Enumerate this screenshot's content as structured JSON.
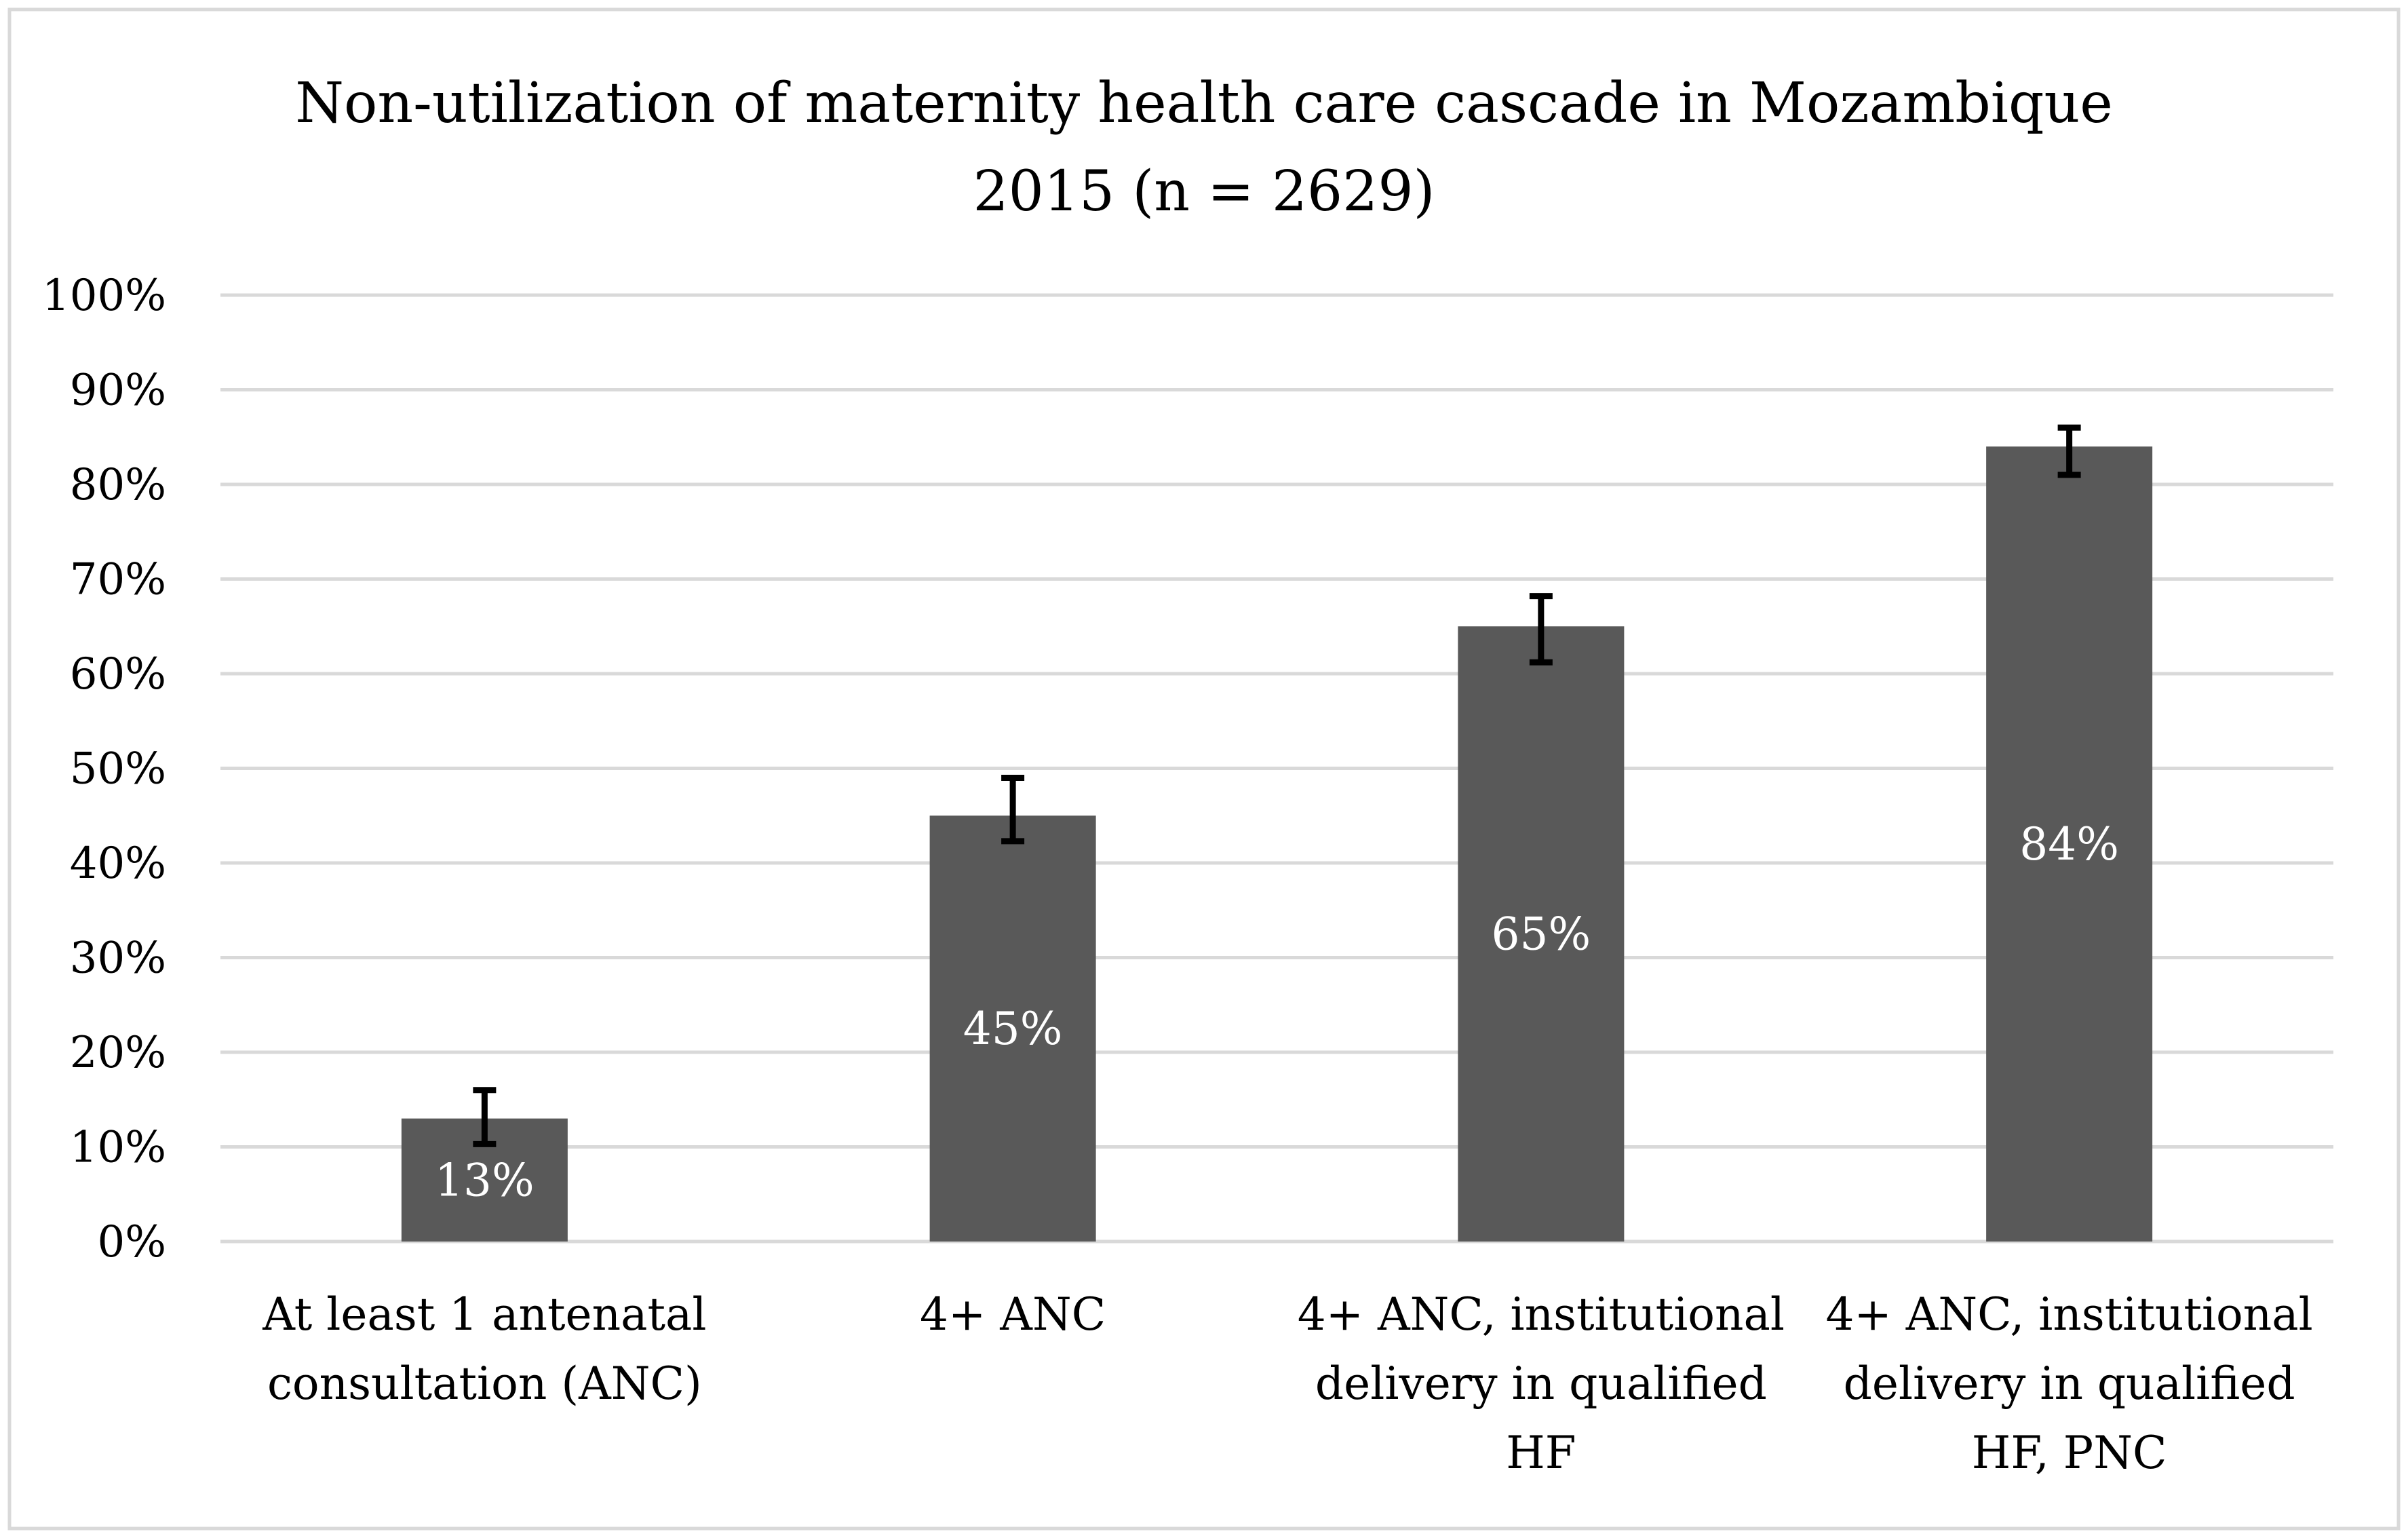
{
  "chart_data": {
    "type": "bar",
    "title": "Non-utilization of maternity health care cascade in Mozambique",
    "subtitle": "2015 (n = 2629)",
    "categories": [
      [
        "At least 1 antenatal",
        "consultation (ANC)"
      ],
      [
        "4+ ANC"
      ],
      [
        "4+ ANC, institutional",
        "delivery in qualified",
        "HF"
      ],
      [
        "4+ ANC, institutional",
        "delivery in qualified",
        "HF, PNC"
      ]
    ],
    "values": [
      13,
      45,
      65,
      84
    ],
    "data_labels": [
      "13%",
      "45%",
      "65%",
      "84%"
    ],
    "error_bars": [
      {
        "low": 10.3,
        "high": 16.0
      },
      {
        "low": 42.3,
        "high": 49.0
      },
      {
        "low": 61.2,
        "high": 68.2
      },
      {
        "low": 81.0,
        "high": 86.0
      }
    ],
    "y_ticks": [
      "0%",
      "10%",
      "20%",
      "30%",
      "40%",
      "50%",
      "60%",
      "70%",
      "80%",
      "90%",
      "100%"
    ],
    "ylim": [
      0,
      100
    ],
    "xlabel": "",
    "ylabel": "",
    "grid": true,
    "legend": "none",
    "colors": {
      "bar": "#595959",
      "grid": "#d9d9d9",
      "border": "#d9d9d9",
      "error_bar": "#000000",
      "label": "#ffffff"
    }
  }
}
